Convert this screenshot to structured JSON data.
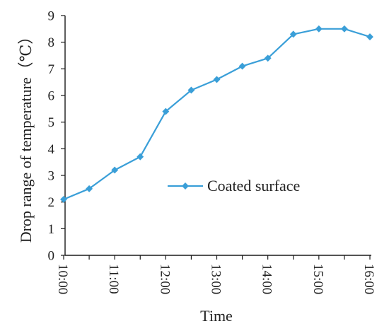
{
  "chart_data": {
    "type": "line",
    "title": "",
    "xlabel": "Time",
    "ylabel": "Drop range of temperature（℃）",
    "ylim": [
      0,
      9
    ],
    "yticks": [
      "0",
      "1",
      "2",
      "3",
      "4",
      "5",
      "6",
      "7",
      "8",
      "9"
    ],
    "xticks": [
      "10:00",
      "11:00",
      "12:00",
      "13:00",
      "14:00",
      "15:00",
      "16:00"
    ],
    "grid": false,
    "legend_position": "center-right",
    "series": [
      {
        "name": "Coated surface",
        "color": "#3a9fd8",
        "marker": "diamond",
        "x": [
          "10:00",
          "10:30",
          "11:00",
          "11:30",
          "12:00",
          "12:30",
          "13:00",
          "13:30",
          "14:00",
          "14:30",
          "15:00",
          "15:30",
          "16:00"
        ],
        "values": [
          2.1,
          2.5,
          3.2,
          3.7,
          5.4,
          6.2,
          6.6,
          7.1,
          7.4,
          8.3,
          8.5,
          8.5,
          8.2
        ]
      }
    ]
  }
}
